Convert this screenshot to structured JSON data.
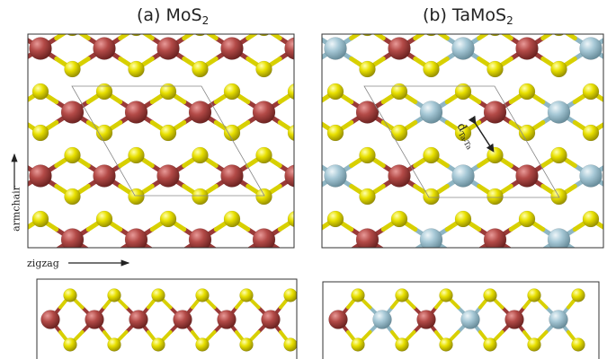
{
  "panels": {
    "a": {
      "prefix": "(a) MoS",
      "subscript": "2"
    },
    "b": {
      "prefix": "(b) TaMoS",
      "subscript": "2"
    }
  },
  "axes": {
    "zigzag": "zigzag",
    "armchair": "armchair"
  },
  "distance_label": {
    "main": "d",
    "subscript": "Ta-Ta"
  },
  "colors": {
    "mo": "#a8403d",
    "ta": "#9cc2d0",
    "s": "#e8e000",
    "bond_mo": "#9a3a38",
    "bond_s": "#d8d000",
    "bond_ta": "#8fb6c4",
    "frame": "#333333",
    "cell": "#888888"
  }
}
